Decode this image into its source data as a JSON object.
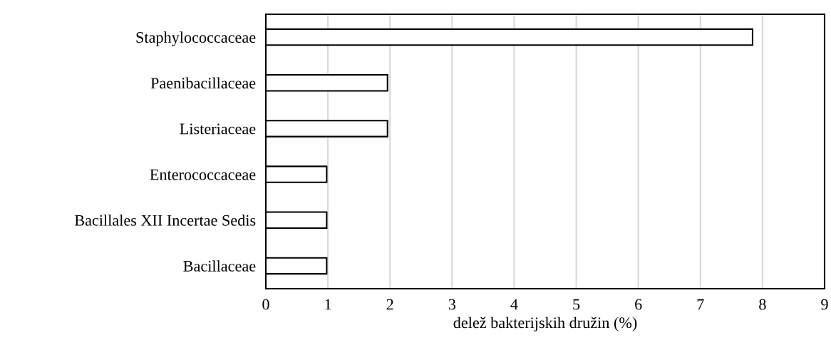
{
  "chart_data": {
    "type": "bar",
    "orientation": "horizontal",
    "xlabel": "delež bakterijskih družin (%)",
    "categories": [
      "Staphylococcaceae",
      "Paenibacillaceae",
      "Listeriaceae",
      "Enterococcaceae",
      "Bacillales XII Incertae Sedis",
      "Bacillaceae"
    ],
    "values": [
      7.84,
      1.96,
      1.96,
      0.98,
      0.98,
      0.98
    ],
    "color": "#ffffff",
    "xlim": [
      0,
      9
    ],
    "xticks": [
      0,
      1,
      2,
      3,
      4,
      5,
      6,
      7,
      8,
      9
    ],
    "grid": "x",
    "legend": false
  }
}
